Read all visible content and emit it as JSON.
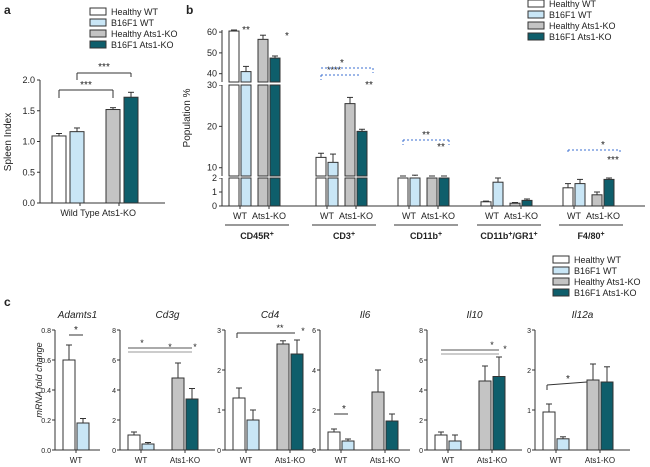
{
  "colors": {
    "healthy_wt": "#ffffff",
    "b16f1_wt": "#c9e6f6",
    "healthy_ko": "#c4c4c4",
    "b16f1_ko": "#0e5e6b",
    "stroke": "#333333",
    "sig_black": "#000000",
    "sig_blue": "#3b6fd1"
  },
  "legend_labels": [
    "Healthy WT",
    "B16F1 WT",
    "Healthy Ats1-KO",
    "B16F1 Ats1-KO"
  ],
  "chart_data": [
    {
      "id": "a",
      "panel_letter": "a",
      "type": "bar",
      "ylabel": "Spleen Index",
      "ylim": [
        0,
        2.0
      ],
      "yticks": [
        "0.0",
        "0.5",
        "1.0",
        "1.5",
        "2.0"
      ],
      "groups": [
        "Wild Type",
        "Ats1-KO"
      ],
      "series": [
        {
          "name": "Healthy WT",
          "group": 0,
          "value": 1.09,
          "err": 0.04
        },
        {
          "name": "B16F1 WT",
          "group": 0,
          "value": 1.16,
          "err": 0.06
        },
        {
          "name": "Healthy Ats1-KO",
          "group": 1,
          "value": 1.52,
          "err": 0.03
        },
        {
          "name": "B16F1 Ats1-KO",
          "group": 1,
          "value": 1.72,
          "err": 0.08
        }
      ],
      "significance": [
        "***",
        "***"
      ]
    },
    {
      "id": "b",
      "panel_letter": "b",
      "type": "bar",
      "ylabel": "Population %",
      "axis_segments": [
        {
          "range": [
            0,
            2
          ],
          "ticks": [
            "0",
            "1",
            "2"
          ]
        },
        {
          "range": [
            8,
            30
          ],
          "ticks": [
            "10",
            "20",
            "30"
          ]
        },
        {
          "range": [
            36,
            61
          ],
          "ticks": [
            "40",
            "50",
            "60"
          ]
        }
      ],
      "groups": [
        {
          "label": "CD45R",
          "sup": "+",
          "ticks": [
            "WT",
            "Ats1-KO"
          ]
        },
        {
          "label": "CD3",
          "sup": "+",
          "ticks": [
            "WT",
            "Ats1-KO"
          ]
        },
        {
          "label": "CD11b",
          "sup": "+",
          "ticks": [
            "WT",
            "Ats1-KO"
          ]
        },
        {
          "label": "CD11b",
          "sup": "+",
          "label2": "/GR1",
          "sup2": "+",
          "ticks": [
            "WT",
            "Ats1-KO"
          ]
        },
        {
          "label": "F4/80",
          "sup": "+",
          "ticks": [
            "WT",
            "Ats1-KO"
          ]
        }
      ],
      "values": [
        [
          60.5,
          41.0,
          56.5,
          47.5
        ],
        [
          12.5,
          11.3,
          25.5,
          18.8
        ],
        [
          5.8,
          7.2,
          3.0,
          6.8
        ],
        [
          0.3,
          1.7,
          0.2,
          0.4
        ],
        [
          1.3,
          1.6,
          0.8,
          1.9
        ]
      ],
      "errors": [
        [
          1.0,
          2.5,
          2.0,
          1.0
        ],
        [
          1.0,
          2.0,
          1.5,
          0.5
        ],
        [
          0.5,
          1.0,
          0.3,
          0.6
        ],
        [
          0.05,
          0.3,
          0.05,
          0.1
        ],
        [
          0.3,
          0.3,
          0.2,
          0.1
        ]
      ],
      "significance": [
        "**",
        "*",
        "****",
        "*",
        "**",
        "**",
        "**",
        "*",
        "***"
      ]
    },
    {
      "id": "c",
      "panel_letter": "c",
      "type": "bar",
      "ylabel": "mRNA fold change",
      "panels": [
        {
          "gene": "Adamts1",
          "ylim": [
            0,
            0.8
          ],
          "yticks": [
            "0.0",
            "0.2",
            "0.4",
            "0.6",
            "0.8"
          ],
          "ticks": [
            "WT"
          ],
          "values": [
            0.6,
            0.18
          ],
          "errors": [
            0.1,
            0.03
          ],
          "sig": [
            "*"
          ]
        },
        {
          "gene": "Cd3g",
          "ylim": [
            0,
            8
          ],
          "yticks": [
            "0",
            "2",
            "4",
            "6",
            "8"
          ],
          "ticks": [
            "WT",
            "Ats1-KO"
          ],
          "values": [
            1.0,
            0.4,
            4.8,
            3.4
          ],
          "errors": [
            0.2,
            0.1,
            1.0,
            0.7
          ],
          "sig": [
            "*",
            "*",
            "*"
          ]
        },
        {
          "gene": "Cd4",
          "ylim": [
            0,
            3
          ],
          "yticks": [
            "0",
            "1",
            "2",
            "3"
          ],
          "ticks": [
            "WT",
            "Ats1-KO"
          ],
          "values": [
            1.3,
            0.75,
            2.65,
            2.4
          ],
          "errors": [
            0.25,
            0.25,
            0.08,
            0.35
          ],
          "sig": [
            "**",
            "*"
          ]
        },
        {
          "gene": "Il6",
          "ylim": [
            0,
            6
          ],
          "yticks": [
            "0",
            "2",
            "4",
            "6"
          ],
          "ticks": [
            "WT",
            "Ats1-KO"
          ],
          "values": [
            0.9,
            0.45,
            2.9,
            1.45
          ],
          "errors": [
            0.15,
            0.1,
            1.1,
            0.35
          ],
          "sig": [
            "*"
          ]
        },
        {
          "gene": "Il10",
          "ylim": [
            0,
            8
          ],
          "yticks": [
            "0",
            "2",
            "4",
            "6",
            "8"
          ],
          "ticks": [
            "WT",
            "Ats1-KO"
          ],
          "values": [
            1.0,
            0.6,
            4.6,
            4.9
          ],
          "errors": [
            0.2,
            0.4,
            1.0,
            1.3
          ],
          "sig": [
            "*",
            "*"
          ]
        },
        {
          "gene": "Il12a",
          "ylim": [
            0,
            3
          ],
          "yticks": [
            "0",
            "1",
            "2",
            "3"
          ],
          "ticks": [
            "WT",
            "Ats1-KO"
          ],
          "values": [
            0.95,
            0.28,
            1.75,
            1.7
          ],
          "errors": [
            0.2,
            0.05,
            0.4,
            0.38
          ],
          "sig": [
            "*"
          ]
        }
      ]
    }
  ]
}
